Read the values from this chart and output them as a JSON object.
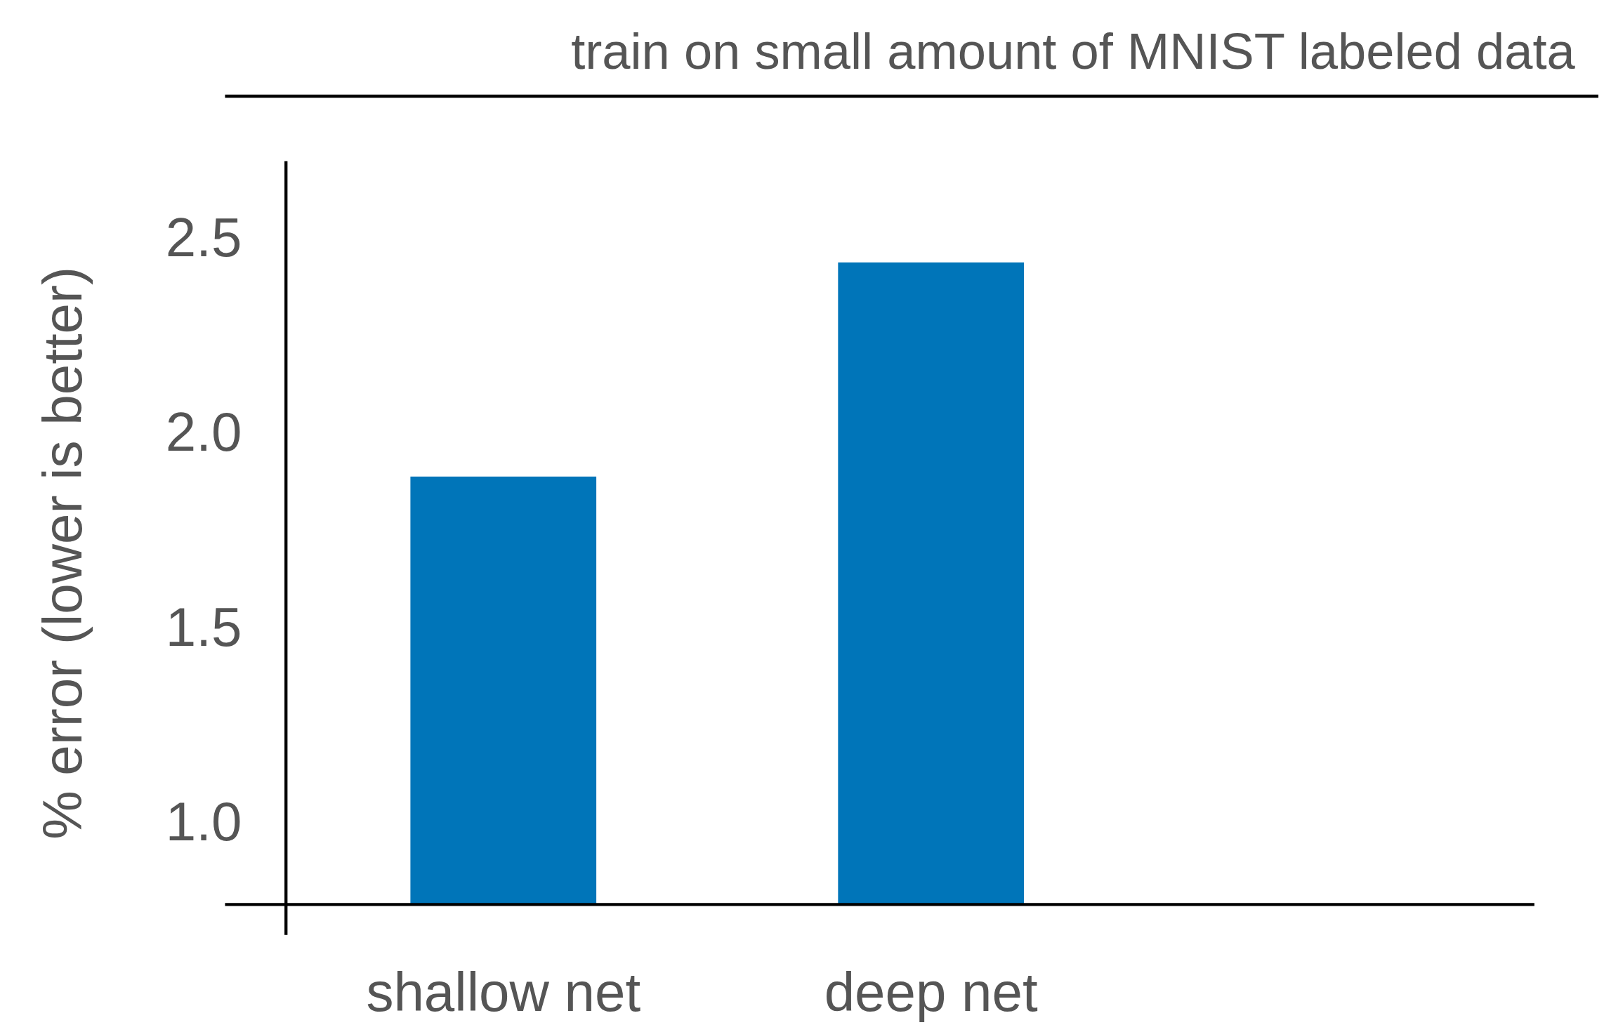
{
  "chart_data": {
    "type": "bar",
    "title": "train on small amount of MNIST labeled data",
    "ylabel": "% error (lower is better)",
    "categories": [
      "shallow net",
      "deep net"
    ],
    "values": [
      1.885,
      2.435
    ],
    "color": "#0075b9",
    "ylim": [
      0.786,
      2.695
    ],
    "yticks": [
      {
        "value": 1.0,
        "label": "1.0"
      },
      {
        "value": 1.5,
        "label": "1.5"
      },
      {
        "value": 2.0,
        "label": "2.0"
      },
      {
        "value": 2.5,
        "label": "2.5"
      }
    ],
    "grid": false
  }
}
